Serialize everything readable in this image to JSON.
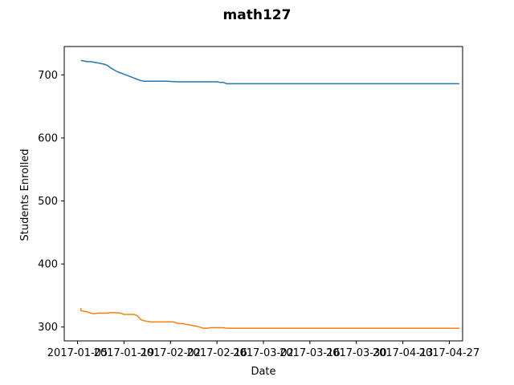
{
  "chart_data": {
    "type": "line",
    "title": "math127",
    "xlabel": "Date",
    "ylabel": "Students Enrolled",
    "xlim": [
      "2017-01-01",
      "2017-05-01"
    ],
    "ylim": [
      278,
      745
    ],
    "x_ticks": [
      "2017-01-05",
      "2017-01-19",
      "2017-02-02",
      "2017-02-16",
      "2017-03-02",
      "2017-03-16",
      "2017-03-30",
      "2017-04-13",
      "2017-04-27"
    ],
    "y_ticks": [
      300,
      400,
      500,
      600,
      700
    ],
    "grid": false,
    "legend": "none",
    "series": [
      {
        "color": "#1f77b4",
        "points": [
          [
            "2017-01-06",
            723
          ],
          [
            "2017-01-07",
            722
          ],
          [
            "2017-01-08",
            721
          ],
          [
            "2017-01-09",
            721
          ],
          [
            "2017-01-10",
            720
          ],
          [
            "2017-01-11",
            719
          ],
          [
            "2017-01-12",
            718
          ],
          [
            "2017-01-13",
            717
          ],
          [
            "2017-01-14",
            715
          ],
          [
            "2017-01-15",
            711
          ],
          [
            "2017-01-16",
            708
          ],
          [
            "2017-01-17",
            705
          ],
          [
            "2017-01-18",
            703
          ],
          [
            "2017-01-19",
            701
          ],
          [
            "2017-01-20",
            699
          ],
          [
            "2017-01-21",
            697
          ],
          [
            "2017-01-22",
            695
          ],
          [
            "2017-01-23",
            693
          ],
          [
            "2017-01-24",
            691
          ],
          [
            "2017-01-25",
            690
          ],
          [
            "2017-02-01",
            690
          ],
          [
            "2017-02-04",
            689
          ],
          [
            "2017-02-16",
            689
          ],
          [
            "2017-02-17",
            688
          ],
          [
            "2017-02-18",
            688
          ],
          [
            "2017-02-19",
            686
          ],
          [
            "2017-04-30",
            686
          ]
        ]
      },
      {
        "color": "#ff7f0e",
        "points": [
          [
            "2017-01-06",
            330
          ],
          [
            "2017-01-06",
            326
          ],
          [
            "2017-01-07",
            325
          ],
          [
            "2017-01-08",
            324
          ],
          [
            "2017-01-09",
            322
          ],
          [
            "2017-01-10",
            321
          ],
          [
            "2017-01-11",
            322
          ],
          [
            "2017-01-12",
            322
          ],
          [
            "2017-01-14",
            322
          ],
          [
            "2017-01-15",
            323
          ],
          [
            "2017-01-18",
            322
          ],
          [
            "2017-01-19",
            320
          ],
          [
            "2017-01-22",
            320
          ],
          [
            "2017-01-23",
            318
          ],
          [
            "2017-01-24",
            312
          ],
          [
            "2017-01-25",
            310
          ],
          [
            "2017-01-26",
            309
          ],
          [
            "2017-01-27",
            308
          ],
          [
            "2017-02-03",
            308
          ],
          [
            "2017-02-04",
            306
          ],
          [
            "2017-02-06",
            305
          ],
          [
            "2017-02-08",
            303
          ],
          [
            "2017-02-10",
            301
          ],
          [
            "2017-02-12",
            298
          ],
          [
            "2017-02-13",
            298
          ],
          [
            "2017-02-14",
            299
          ],
          [
            "2017-02-18",
            299
          ],
          [
            "2017-02-19",
            298
          ],
          [
            "2017-04-30",
            298
          ]
        ]
      }
    ]
  }
}
